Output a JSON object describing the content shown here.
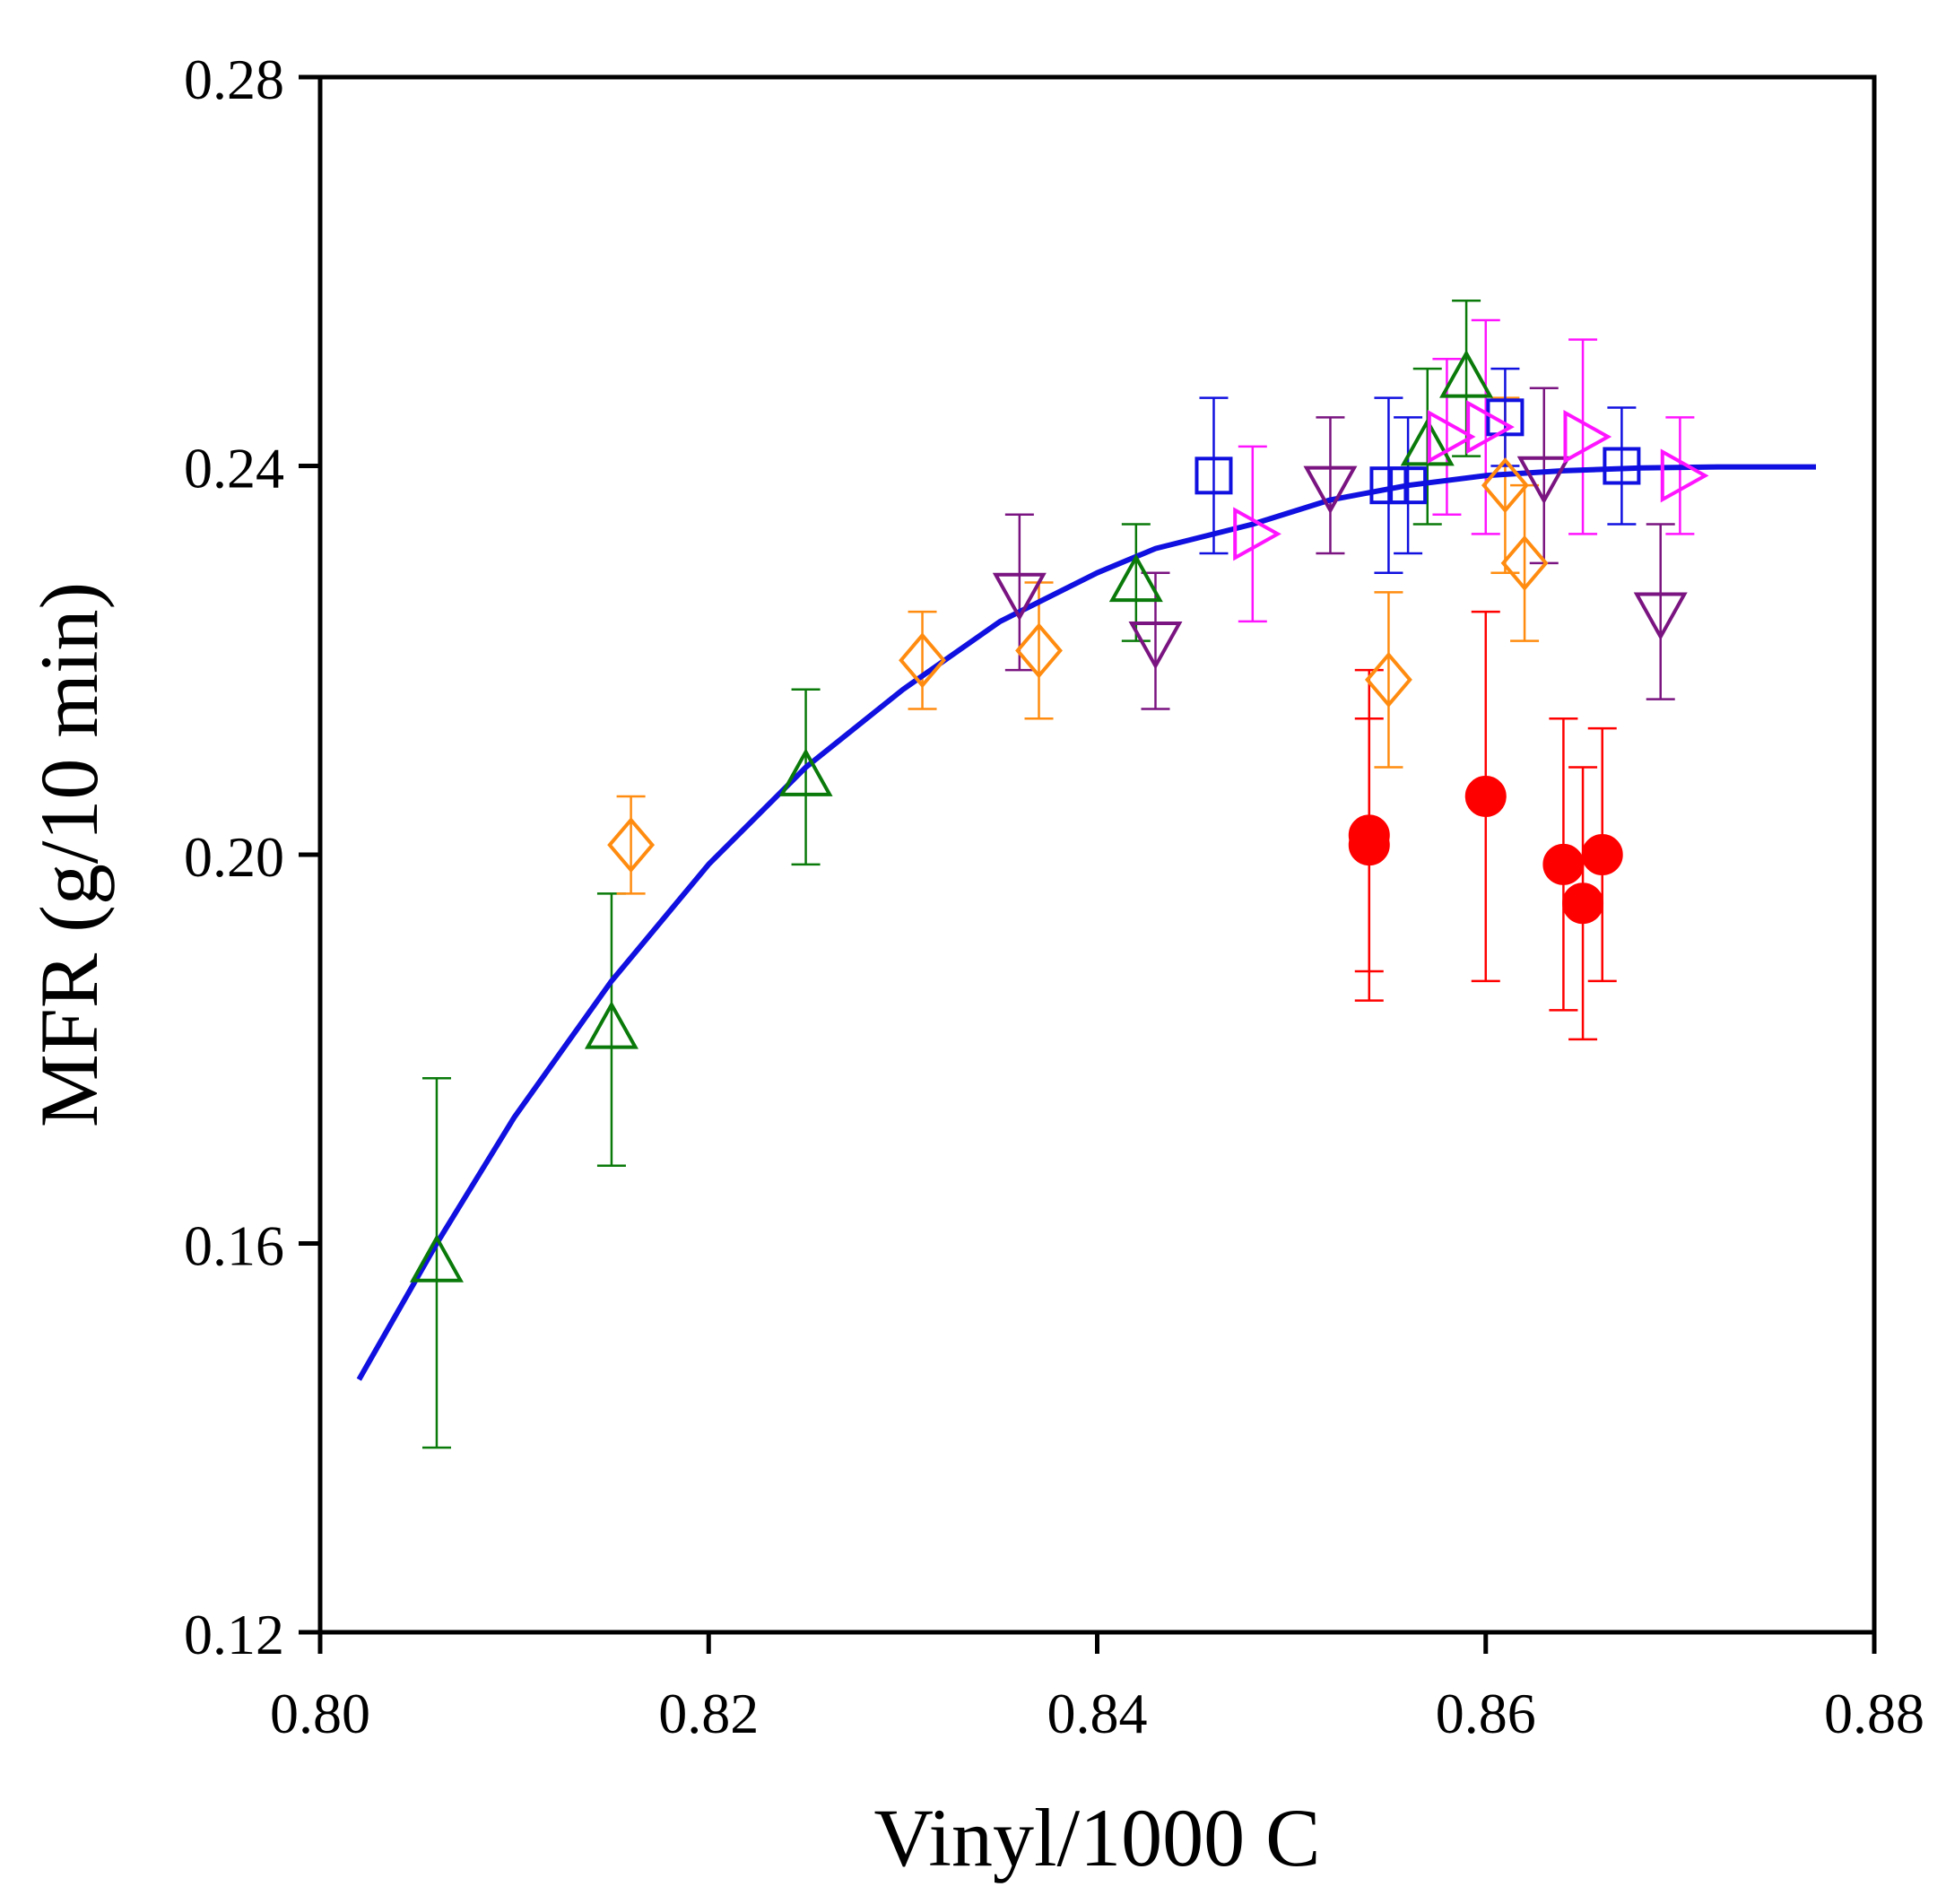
{
  "chart_data": {
    "type": "scatter",
    "title": "",
    "xlabel": "Vinyl/1000 C",
    "ylabel": "MFR (g/10 min)",
    "xlim": [
      0.8,
      0.88
    ],
    "ylim": [
      0.12,
      0.28
    ],
    "xticks": [
      "0.80",
      "0.82",
      "0.84",
      "0.86",
      "0.88"
    ],
    "yticks": [
      "0.12",
      "0.16",
      "0.20",
      "0.24",
      "0.28"
    ],
    "grid": false,
    "legend": "none",
    "fit_curve": {
      "name": "fit",
      "color": "#1010e0",
      "x": [
        0.802,
        0.806,
        0.81,
        0.815,
        0.82,
        0.825,
        0.83,
        0.835,
        0.84,
        0.843,
        0.848,
        0.852,
        0.856,
        0.86,
        0.864,
        0.868,
        0.872,
        0.877
      ],
      "y": [
        0.146,
        0.16,
        0.173,
        0.187,
        0.199,
        0.209,
        0.217,
        0.224,
        0.229,
        0.2315,
        0.234,
        0.2365,
        0.238,
        0.239,
        0.2395,
        0.2398,
        0.2399,
        0.2399
      ]
    },
    "series": [
      {
        "name": "triangle-up",
        "marker": "triangle-up",
        "color": "#0a7a0a",
        "x": [
          0.806,
          0.815,
          0.825,
          0.842,
          0.857,
          0.859
        ],
        "y": [
          0.158,
          0.182,
          0.208,
          0.228,
          0.242,
          0.249
        ],
        "err": [
          0.019,
          0.014,
          0.009,
          0.006,
          0.008,
          0.008
        ]
      },
      {
        "name": "diamond",
        "marker": "diamond",
        "color": "#ff8c10",
        "x": [
          0.816,
          0.831,
          0.837,
          0.855,
          0.861,
          0.862
        ],
        "y": [
          0.201,
          0.22,
          0.221,
          0.218,
          0.238,
          0.23
        ],
        "err": [
          0.005,
          0.005,
          0.007,
          0.009,
          0.009,
          0.008
        ]
      },
      {
        "name": "triangle-down",
        "marker": "triangle-down",
        "color": "#7a1480",
        "x": [
          0.836,
          0.843,
          0.852,
          0.863,
          0.869
        ],
        "y": [
          0.227,
          0.222,
          0.238,
          0.239,
          0.225
        ],
        "err": [
          0.008,
          0.007,
          0.007,
          0.009,
          0.009
        ]
      },
      {
        "name": "square",
        "marker": "square",
        "color": "#1010e0",
        "x": [
          0.846,
          0.855,
          0.856,
          0.861,
          0.867
        ],
        "y": [
          0.239,
          0.238,
          0.238,
          0.245,
          0.24
        ],
        "err": [
          0.008,
          0.009,
          0.007,
          0.005,
          0.006
        ]
      },
      {
        "name": "triangle-right",
        "marker": "triangle-right",
        "color": "#ff14ff",
        "x": [
          0.848,
          0.858,
          0.86,
          0.865,
          0.87
        ],
        "y": [
          0.233,
          0.243,
          0.244,
          0.243,
          0.239
        ],
        "err": [
          0.009,
          0.008,
          0.011,
          0.01,
          0.006
        ]
      },
      {
        "name": "filled-circle",
        "marker": "circle-filled",
        "color": "#ff0000",
        "x": [
          0.854,
          0.854,
          0.86,
          0.864,
          0.865,
          0.866
        ],
        "y": [
          0.202,
          0.201,
          0.206,
          0.199,
          0.195,
          0.2
        ],
        "err": [
          0.017,
          0.013,
          0.019,
          0.015,
          0.014,
          0.013
        ]
      }
    ]
  }
}
